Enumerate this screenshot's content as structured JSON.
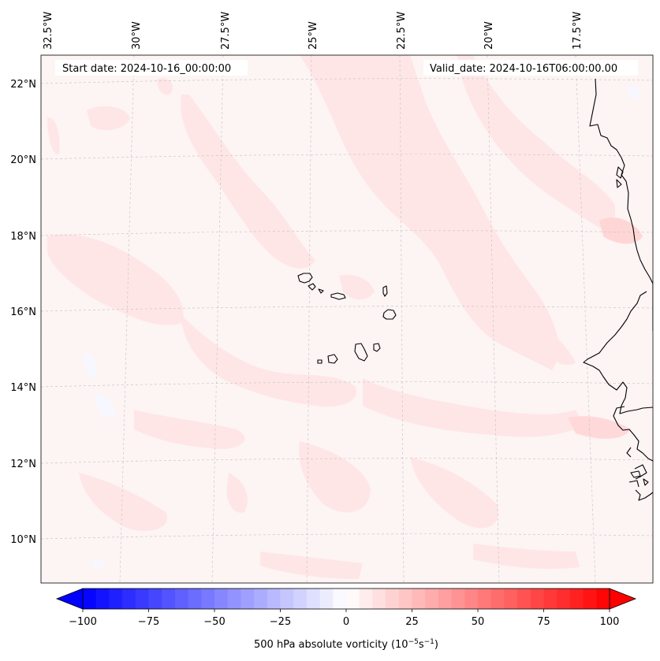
{
  "map": {
    "start_date": "Start date: 2024-10-16_00:00:00",
    "valid_date": "Valid_date: 2024-10-16T06:00:00.00",
    "lon_labels": [
      "32.5°W",
      "30°W",
      "27.5°W",
      "25°W",
      "22.5°W",
      "20°W",
      "17.5°W"
    ],
    "lat_labels": [
      "22°N",
      "20°N",
      "18°N",
      "16°N",
      "14°N",
      "12°N",
      "10°N"
    ],
    "background_color": "#fdf4f4",
    "anomaly_color": "#ffe5e5",
    "coastline_color": "#000000"
  },
  "colorbar": {
    "ticks": [
      "−100",
      "−75",
      "−50",
      "−25",
      "0",
      "25",
      "50",
      "75",
      "100"
    ],
    "label_prefix": "500 hPa absolute vorticity (10",
    "exp1": "−5",
    "label_mid": "s",
    "exp2": "−1",
    "label_suffix": ")",
    "min_color": "#0000ff",
    "mid_color": "#ffffff",
    "max_color": "#ff0000"
  }
}
